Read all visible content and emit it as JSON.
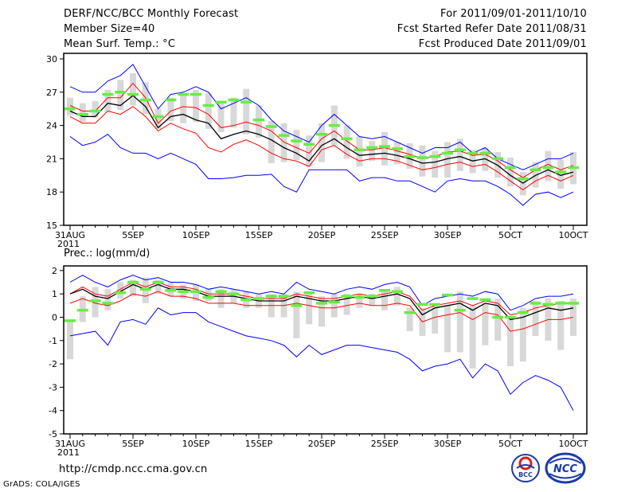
{
  "header": {
    "title": "DERF/NCC/BCC Monthly Forecast",
    "member_size": "Member Size=40",
    "variable": "Mean Surf. Temp.: °C",
    "period": "For 2011/09/01-2011/10/10",
    "started": "Fcst Started Refer Date 2011/08/31",
    "produced": "Fcst Produced Date 2011/09/01"
  },
  "footer": {
    "url": "http://cmdp.ncc.cma.gov.cn",
    "grads": "GrADS: COLA/IGES",
    "logo_left": "BCC",
    "logo_right": "NCC"
  },
  "colors": {
    "bar": "#d8d8d8",
    "obs": "#66ee44",
    "mean": "#000000",
    "spread": "#ff0000",
    "envelope": "#0000ff",
    "frame": "#000000"
  },
  "chart_data": [
    {
      "type": "line",
      "title": "Mean Surf. Temp.: °C",
      "x": [
        0,
        1,
        2,
        3,
        4,
        5,
        6,
        7,
        8,
        9,
        10,
        11,
        12,
        13,
        14,
        15,
        16,
        17,
        18,
        19,
        20,
        21,
        22,
        23,
        24,
        25,
        26,
        27,
        28,
        29,
        30,
        31,
        32,
        33,
        34,
        35,
        36,
        37,
        38,
        39,
        40
      ],
      "xticks": [
        {
          "i": 0,
          "label": "31AUG",
          "sub": "2011"
        },
        {
          "i": 5,
          "label": "5SEP"
        },
        {
          "i": 10,
          "label": "10SEP"
        },
        {
          "i": 15,
          "label": "15SEP"
        },
        {
          "i": 20,
          "label": "20SEP"
        },
        {
          "i": 25,
          "label": "25SEP"
        },
        {
          "i": 30,
          "label": "30SEP"
        },
        {
          "i": 35,
          "label": "5OCT"
        },
        {
          "i": 40,
          "label": "10OCT"
        }
      ],
      "yticks": [
        15,
        18,
        21,
        24,
        27,
        30
      ],
      "ylim": [
        15,
        30.5
      ],
      "series": [
        {
          "name": "max",
          "values": [
            27.5,
            27.0,
            27.0,
            28.0,
            28.5,
            29.5,
            27.5,
            25.5,
            26.8,
            27.0,
            27.5,
            27.0,
            25.5,
            26.0,
            26.5,
            25.8,
            24.5,
            23.5,
            23.0,
            22.5,
            24.0,
            25.0,
            24.0,
            23.0,
            22.8,
            23.0,
            22.5,
            22.0,
            21.5,
            22.0,
            22.0,
            22.5,
            21.5,
            22.0,
            21.0,
            20.5,
            20.0,
            20.5,
            21.0,
            21.0,
            21.5
          ]
        },
        {
          "name": "upper",
          "values": [
            25.8,
            25.3,
            25.3,
            26.5,
            26.5,
            27.8,
            26.5,
            24.2,
            25.3,
            25.7,
            25.6,
            25.0,
            23.8,
            24.0,
            24.3,
            24.0,
            23.5,
            22.5,
            22.0,
            21.5,
            22.8,
            23.5,
            22.6,
            21.8,
            21.8,
            22.0,
            21.7,
            21.4,
            21.0,
            21.2,
            21.6,
            21.7,
            21.3,
            21.4,
            20.8,
            20.0,
            19.3,
            20.0,
            20.5,
            20.0,
            20.4
          ]
        },
        {
          "name": "mean",
          "values": [
            25.3,
            24.8,
            24.8,
            26.0,
            25.8,
            26.7,
            25.7,
            23.8,
            24.8,
            25.0,
            24.5,
            24.2,
            22.8,
            23.2,
            23.5,
            23.2,
            22.7,
            22.0,
            21.5,
            20.8,
            22.2,
            22.8,
            22.0,
            21.3,
            21.4,
            21.5,
            21.3,
            21.0,
            20.6,
            20.7,
            21.0,
            21.2,
            20.8,
            21.0,
            20.4,
            19.5,
            18.8,
            19.5,
            20.0,
            19.5,
            19.8
          ]
        },
        {
          "name": "lower",
          "values": [
            24.8,
            24.2,
            24.2,
            25.3,
            25.0,
            25.7,
            24.8,
            23.5,
            24.2,
            23.7,
            23.3,
            22.0,
            21.6,
            22.3,
            22.7,
            22.2,
            21.5,
            21.0,
            20.8,
            20.3,
            21.8,
            22.2,
            21.4,
            20.8,
            21.0,
            21.0,
            20.8,
            20.4,
            20.0,
            20.2,
            20.5,
            20.7,
            20.3,
            20.5,
            19.8,
            19.0,
            18.2,
            19.0,
            19.5,
            19.0,
            19.5
          ]
        },
        {
          "name": "min",
          "values": [
            23.0,
            22.2,
            22.5,
            23.2,
            22.0,
            21.5,
            21.5,
            21.0,
            21.5,
            21.0,
            20.5,
            19.2,
            19.2,
            19.3,
            19.5,
            19.5,
            19.6,
            18.5,
            18.0,
            20.0,
            20.0,
            20.0,
            20.0,
            19.0,
            19.3,
            19.3,
            19.0,
            19.0,
            18.5,
            18.0,
            19.0,
            19.2,
            19.0,
            19.0,
            18.5,
            17.8,
            16.8,
            17.8,
            18.0,
            17.5,
            18.0
          ]
        }
      ],
      "bars": [
        [
          24.9,
          26.5
        ],
        [
          24.3,
          26.0
        ],
        [
          24.7,
          26.2
        ],
        [
          25.2,
          27.2
        ],
        [
          25.4,
          28.1
        ],
        [
          25.8,
          28.7
        ],
        [
          25.0,
          27.9
        ],
        [
          23.7,
          25.5
        ],
        [
          24.4,
          26.5
        ],
        [
          24.2,
          26.9
        ],
        [
          24.3,
          27.2
        ],
        [
          23.7,
          26.9
        ],
        [
          23.4,
          26.0
        ],
        [
          23.8,
          26.5
        ],
        [
          23.2,
          27.3
        ],
        [
          22.9,
          25.8
        ],
        [
          20.6,
          24.4
        ],
        [
          20.7,
          24.2
        ],
        [
          20.9,
          23.6
        ],
        [
          20.3,
          23.1
        ],
        [
          20.7,
          24.2
        ],
        [
          22.2,
          25.8
        ],
        [
          21.0,
          24.0
        ],
        [
          20.3,
          23.0
        ],
        [
          20.8,
          22.6
        ],
        [
          20.4,
          23.4
        ],
        [
          20.5,
          22.5
        ],
        [
          20.1,
          22.4
        ],
        [
          19.4,
          22.2
        ],
        [
          19.3,
          21.7
        ],
        [
          19.3,
          22.5
        ],
        [
          19.9,
          22.8
        ],
        [
          19.7,
          21.8
        ],
        [
          19.9,
          22.0
        ],
        [
          19.3,
          21.6
        ],
        [
          18.5,
          21.1
        ],
        [
          17.7,
          19.8
        ],
        [
          18.4,
          20.7
        ],
        [
          19.0,
          21.7
        ],
        [
          18.3,
          20.9
        ],
        [
          18.7,
          21.6
        ]
      ],
      "obs": [
        25.5,
        25.0,
        25.3,
        26.8,
        27.0,
        26.8,
        26.3,
        24.8,
        26.3,
        26.8,
        26.8,
        25.8,
        26.1,
        26.3,
        26.1,
        24.5,
        23.9,
        23.1,
        22.6,
        22.3,
        23.2,
        24.0,
        22.8,
        21.8,
        22.0,
        22.1,
        21.9,
        21.2,
        21.1,
        21.2,
        21.5,
        21.8,
        21.5,
        21.5,
        21.0,
        20.2,
        19.2,
        20.0,
        20.2,
        19.8,
        20.2
      ]
    },
    {
      "type": "line",
      "title": "Prec.: log(mm/d)",
      "x": [
        0,
        1,
        2,
        3,
        4,
        5,
        6,
        7,
        8,
        9,
        10,
        11,
        12,
        13,
        14,
        15,
        16,
        17,
        18,
        19,
        20,
        21,
        22,
        23,
        24,
        25,
        26,
        27,
        28,
        29,
        30,
        31,
        32,
        33,
        34,
        35,
        36,
        37,
        38,
        39,
        40
      ],
      "xticks": [
        {
          "i": 0,
          "label": "31AUG",
          "sub": "2011"
        },
        {
          "i": 5,
          "label": "5SEP"
        },
        {
          "i": 10,
          "label": "10SEP"
        },
        {
          "i": 15,
          "label": "15SEP"
        },
        {
          "i": 20,
          "label": "20SEP"
        },
        {
          "i": 25,
          "label": "25SEP"
        },
        {
          "i": 30,
          "label": "30SEP"
        },
        {
          "i": 35,
          "label": "5OCT"
        },
        {
          "i": 40,
          "label": "10OCT"
        }
      ],
      "yticks": [
        -5,
        -4,
        -3,
        -2,
        -1,
        0,
        1,
        2
      ],
      "ylim": [
        -5,
        2.2
      ],
      "series": [
        {
          "name": "max",
          "values": [
            1.5,
            1.8,
            1.5,
            1.3,
            1.6,
            1.8,
            1.6,
            1.7,
            1.5,
            1.5,
            1.4,
            1.2,
            1.3,
            1.2,
            1.1,
            1.0,
            1.1,
            1.0,
            1.5,
            1.2,
            1.1,
            1.0,
            1.2,
            1.3,
            1.2,
            1.4,
            1.5,
            1.3,
            0.5,
            0.8,
            0.9,
            1.0,
            0.9,
            1.1,
            1.0,
            0.3,
            0.5,
            0.8,
            0.9,
            0.9,
            1.0
          ]
        },
        {
          "name": "upper",
          "values": [
            1.0,
            1.3,
            1.0,
            0.9,
            1.2,
            1.5,
            1.3,
            1.5,
            1.3,
            1.3,
            1.2,
            1.0,
            1.0,
            1.0,
            0.9,
            0.8,
            0.8,
            0.8,
            1.0,
            0.9,
            0.8,
            0.8,
            0.9,
            1.0,
            0.9,
            1.0,
            1.1,
            0.9,
            0.3,
            0.5,
            0.6,
            0.7,
            0.5,
            0.7,
            0.6,
            0.1,
            0.2,
            0.4,
            0.5,
            0.6,
            0.6
          ]
        },
        {
          "name": "mean",
          "values": [
            1.0,
            1.2,
            0.9,
            0.8,
            1.1,
            1.4,
            1.2,
            1.4,
            1.2,
            1.2,
            1.1,
            0.9,
            0.9,
            0.9,
            0.8,
            0.7,
            0.7,
            0.7,
            0.9,
            0.8,
            0.7,
            0.7,
            0.8,
            0.9,
            0.8,
            0.9,
            1.0,
            0.8,
            0.1,
            0.4,
            0.5,
            0.6,
            0.3,
            0.6,
            0.5,
            -0.1,
            0.0,
            0.2,
            0.4,
            0.3,
            0.4
          ]
        },
        {
          "name": "lower",
          "values": [
            0.6,
            0.8,
            0.6,
            0.5,
            0.7,
            1.0,
            0.9,
            1.1,
            0.9,
            0.9,
            0.8,
            0.6,
            0.6,
            0.6,
            0.5,
            0.5,
            0.5,
            0.5,
            0.6,
            0.5,
            0.4,
            0.4,
            0.5,
            0.6,
            0.5,
            0.5,
            0.6,
            0.5,
            -0.2,
            0.0,
            0.1,
            0.2,
            -0.1,
            0.2,
            0.1,
            -0.6,
            -0.5,
            -0.3,
            -0.1,
            -0.1,
            0.0
          ]
        },
        {
          "name": "min",
          "values": [
            -0.8,
            -0.7,
            -0.6,
            -1.2,
            -0.2,
            -0.1,
            -0.3,
            0.4,
            0.1,
            0.2,
            0.2,
            -0.2,
            -0.4,
            -0.6,
            -0.8,
            -0.9,
            -1.0,
            -1.2,
            -1.7,
            -1.2,
            -1.6,
            -1.4,
            -1.2,
            -1.2,
            -1.3,
            -1.4,
            -1.5,
            -1.8,
            -2.3,
            -2.1,
            -2.0,
            -1.8,
            -2.6,
            -2.0,
            -2.3,
            -3.3,
            -2.8,
            -2.5,
            -2.7,
            -3.0,
            -4.0
          ]
        }
      ],
      "bars": [
        [
          -1.8,
          -0.2
        ],
        [
          -0.2,
          0.9
        ],
        [
          0.0,
          1.3
        ],
        [
          0.3,
          1.2
        ],
        [
          0.8,
          1.5
        ],
        [
          0.9,
          1.6
        ],
        [
          0.6,
          1.7
        ],
        [
          1.0,
          1.6
        ],
        [
          0.9,
          1.5
        ],
        [
          0.8,
          1.4
        ],
        [
          0.7,
          1.4
        ],
        [
          0.7,
          1.2
        ],
        [
          0.4,
          1.2
        ],
        [
          0.6,
          1.2
        ],
        [
          0.4,
          1.1
        ],
        [
          0.4,
          1.0
        ],
        [
          0.0,
          1.0
        ],
        [
          0.0,
          1.0
        ],
        [
          -0.9,
          1.1
        ],
        [
          -0.3,
          1.0
        ],
        [
          -0.4,
          0.9
        ],
        [
          0.0,
          1.0
        ],
        [
          0.1,
          1.0
        ],
        [
          0.4,
          1.0
        ],
        [
          0.5,
          1.0
        ],
        [
          0.3,
          1.2
        ],
        [
          0.5,
          1.3
        ],
        [
          -0.6,
          0.4
        ],
        [
          -0.8,
          0.4
        ],
        [
          -0.7,
          0.6
        ],
        [
          -1.5,
          0.5
        ],
        [
          -1.5,
          1.1
        ],
        [
          -2.2,
          0.5
        ],
        [
          -1.2,
          0.6
        ],
        [
          -1.0,
          0.8
        ],
        [
          -2.1,
          0.0
        ],
        [
          -1.9,
          0.4
        ],
        [
          -0.8,
          0.7
        ],
        [
          -1.0,
          0.8
        ],
        [
          -1.4,
          0.7
        ],
        [
          -0.8,
          0.8
        ]
      ],
      "obs": [
        -0.15,
        0.3,
        0.7,
        0.6,
        1.05,
        1.5,
        1.2,
        1.5,
        1.15,
        1.1,
        1.1,
        0.85,
        1.1,
        1.0,
        0.75,
        0.8,
        0.9,
        0.9,
        0.5,
        1.05,
        0.6,
        0.65,
        0.9,
        0.85,
        0.9,
        1.15,
        1.1,
        0.2,
        0.55,
        0.55,
        0.95,
        0.3,
        0.8,
        0.75,
        0.0,
        0.0,
        0.2,
        0.6,
        0.55,
        0.6,
        0.6
      ]
    }
  ]
}
